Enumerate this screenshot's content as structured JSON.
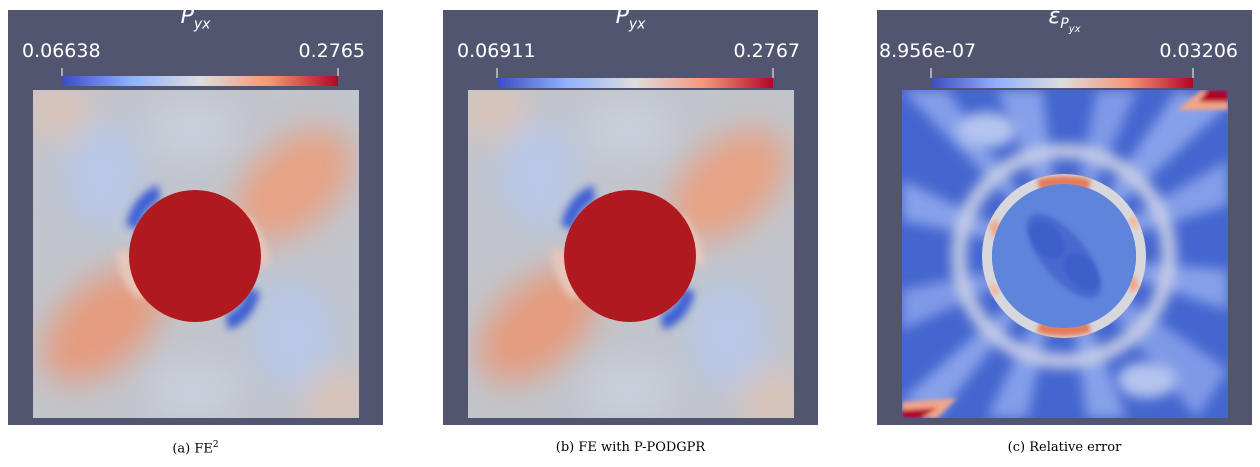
{
  "panels": [
    {
      "title": "P",
      "title_sub": "yx",
      "cb_min": "0.06638",
      "cb_max": "0.2765",
      "caption_prefix": "(a) FE",
      "caption_sup": "2"
    },
    {
      "title": "P",
      "title_sub": "yx",
      "cb_min": "0.06911",
      "cb_max": "0.2767",
      "caption_prefix": "(b) FE with P-PODGPR"
    },
    {
      "title": "ε",
      "title_sub": "P",
      "title_subsub": "yx",
      "cb_min": "8.956e-07",
      "cb_max": "0.03206",
      "caption_prefix": "(c) Relative error"
    }
  ],
  "colors": {
    "background": "#525570",
    "field_base": "#c4c8cf",
    "inclusion": "#b01a1f",
    "error_base": "#4a6bd0",
    "colormap": [
      "#3b4cc0",
      "#8fb1fe",
      "#dddddd",
      "#f4987a",
      "#b40426"
    ]
  }
}
